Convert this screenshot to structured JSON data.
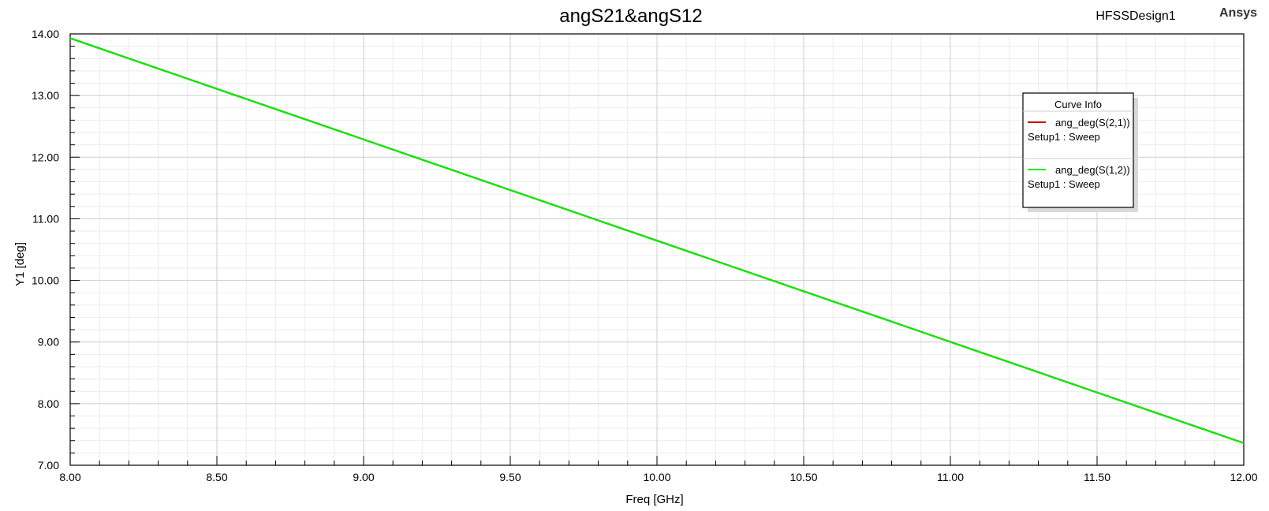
{
  "chart_data": {
    "type": "line",
    "title": "angS21&angS12",
    "design_label": "HFSSDesign1",
    "brand": "Ansys",
    "xlabel": "Freq [GHz]",
    "ylabel": "Y1 [deg]",
    "xlim": [
      8.0,
      12.0
    ],
    "ylim": [
      7.0,
      14.0
    ],
    "x_ticks": [
      "8.00",
      "8.50",
      "9.00",
      "9.50",
      "10.00",
      "10.50",
      "11.00",
      "11.50",
      "12.00"
    ],
    "y_ticks": [
      "7.00",
      "8.00",
      "9.00",
      "10.00",
      "11.00",
      "12.00",
      "13.00",
      "14.00"
    ],
    "grid": true,
    "legend": {
      "title": "Curve Info",
      "position": "top-right"
    },
    "series": [
      {
        "name": "ang_deg(S(2,1))",
        "subtitle": "Setup1 : Sweep",
        "color": "#cc0000",
        "x": [
          8.0,
          12.0
        ],
        "y": [
          13.93,
          7.36
        ]
      },
      {
        "name": "ang_deg(S(1,2))",
        "subtitle": "Setup1 : Sweep",
        "color": "#00ee00",
        "x": [
          8.0,
          12.0
        ],
        "y": [
          13.93,
          7.36
        ]
      }
    ]
  }
}
